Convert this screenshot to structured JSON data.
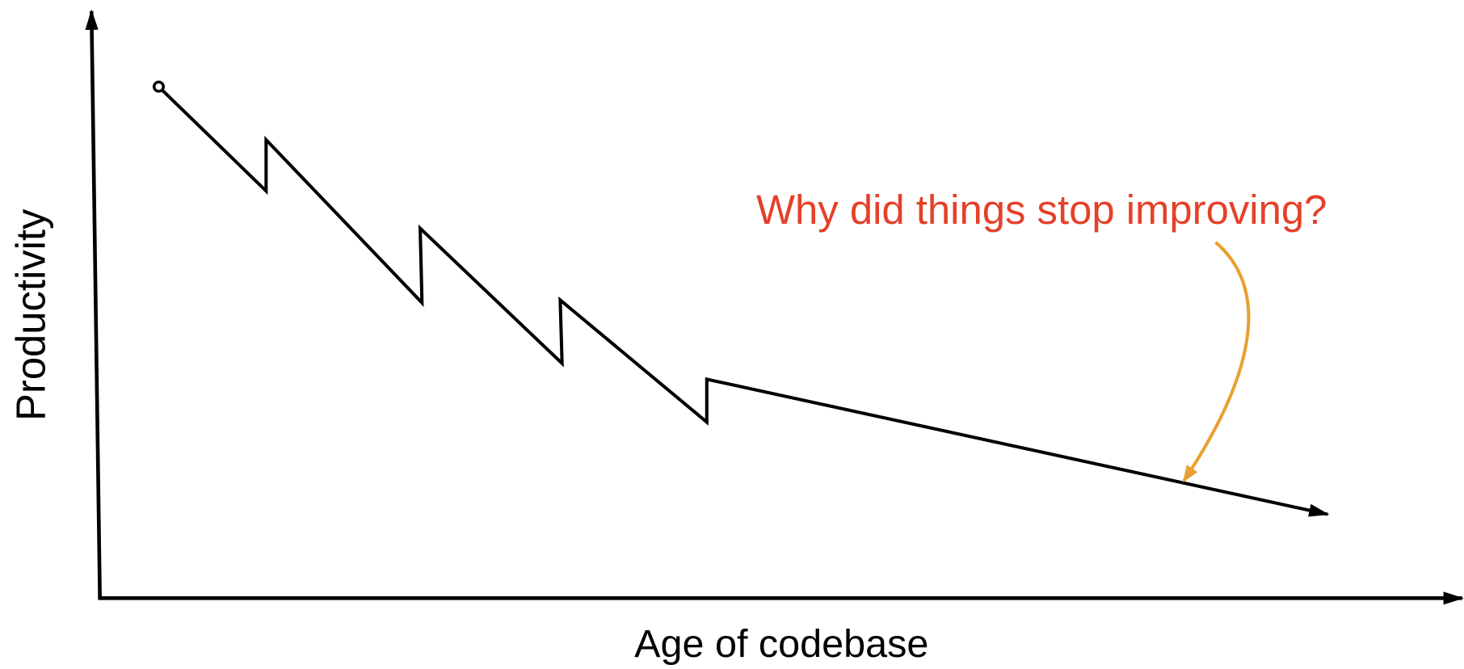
{
  "y_axis_label": "Productivity",
  "x_axis_label": "Age of codebase",
  "annotation": "Why did things stop improving?"
}
